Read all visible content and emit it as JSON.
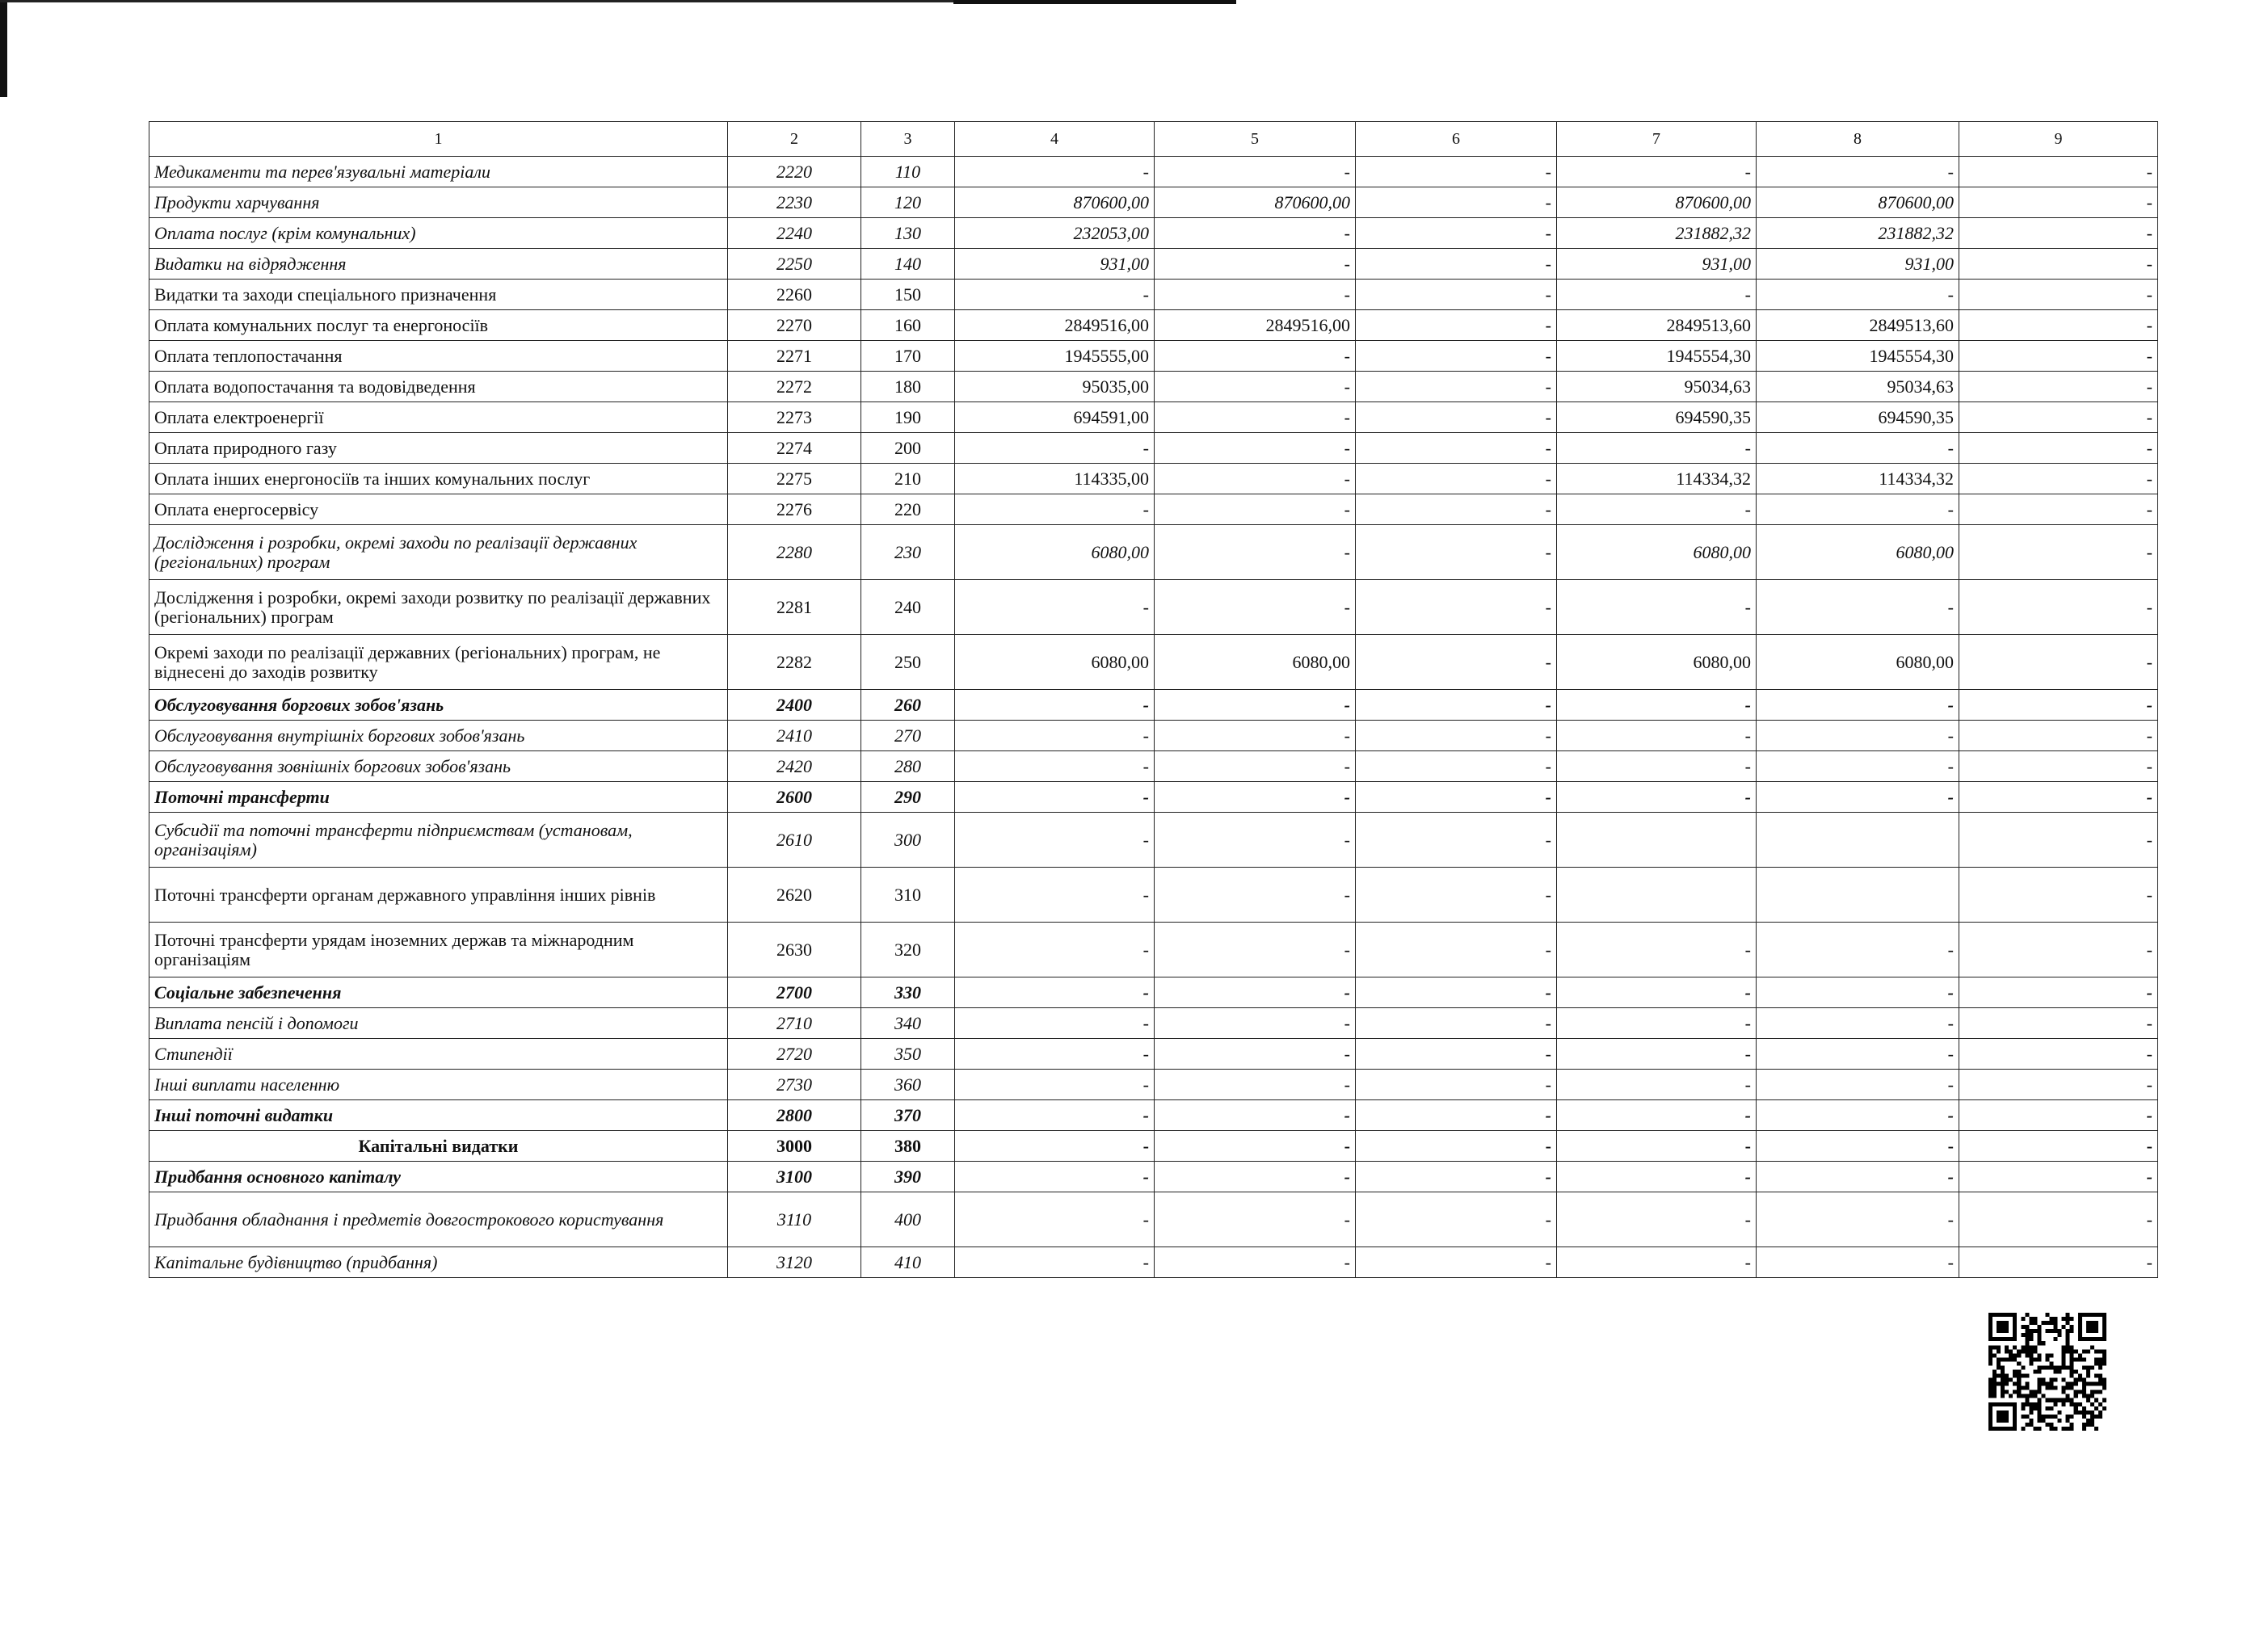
{
  "header": [
    "1",
    "2",
    "3",
    "4",
    "5",
    "6",
    "7",
    "8",
    "9"
  ],
  "rows": [
    {
      "label": "Медикаменти та перев'язувальні матеріали",
      "kekv": "2220",
      "code": "110",
      "values": [
        "-",
        "-",
        "-",
        "-",
        "-",
        "-"
      ],
      "style": "it"
    },
    {
      "label": "Продукти харчування",
      "kekv": "2230",
      "code": "120",
      "values": [
        "870600,00",
        "870600,00",
        "-",
        "870600,00",
        "870600,00",
        "-"
      ],
      "style": "it"
    },
    {
      "label": "Оплата послуг (крім комунальних)",
      "kekv": "2240",
      "code": "130",
      "values": [
        "232053,00",
        "-",
        "-",
        "231882,32",
        "231882,32",
        "-"
      ],
      "style": "it"
    },
    {
      "label": "Видатки на відрядження",
      "kekv": "2250",
      "code": "140",
      "values": [
        "931,00",
        "-",
        "-",
        "931,00",
        "931,00",
        "-"
      ],
      "style": "it"
    },
    {
      "label": "Видатки та заходи спеціального призначення",
      "kekv": "2260",
      "code": "150",
      "values": [
        "-",
        "-",
        "-",
        "-",
        "-",
        "-"
      ],
      "style": ""
    },
    {
      "label": "Оплата комунальних послуг та енергоносіїв",
      "kekv": "2270",
      "code": "160",
      "values": [
        "2849516,00",
        "2849516,00",
        "-",
        "2849513,60",
        "2849513,60",
        "-"
      ],
      "style": ""
    },
    {
      "label": "Оплата теплопостачання",
      "kekv": "2271",
      "code": "170",
      "values": [
        "1945555,00",
        "-",
        "-",
        "1945554,30",
        "1945554,30",
        "-"
      ],
      "style": ""
    },
    {
      "label": "Оплата водопостачання  та водовідведення",
      "kekv": "2272",
      "code": "180",
      "values": [
        "95035,00",
        "-",
        "-",
        "95034,63",
        "95034,63",
        "-"
      ],
      "style": ""
    },
    {
      "label": "Оплата електроенергії",
      "kekv": "2273",
      "code": "190",
      "values": [
        "694591,00",
        "-",
        "-",
        "694590,35",
        "694590,35",
        "-"
      ],
      "style": ""
    },
    {
      "label": "Оплата природного газу",
      "kekv": "2274",
      "code": "200",
      "values": [
        "-",
        "-",
        "-",
        "-",
        "-",
        "-"
      ],
      "style": ""
    },
    {
      "label": "Оплата інших енергоносіїв та інших комунальних послуг",
      "kekv": "2275",
      "code": "210",
      "values": [
        "114335,00",
        "-",
        "-",
        "114334,32",
        "114334,32",
        "-"
      ],
      "style": ""
    },
    {
      "label": "Оплата енергосервісу",
      "kekv": "2276",
      "code": "220",
      "values": [
        "-",
        "-",
        "-",
        "-",
        "-",
        "-"
      ],
      "style": ""
    },
    {
      "label": "Дослідження і розробки, окремі заходи по реалізації державних (регіональних) програм",
      "kekv": "2280",
      "code": "230",
      "values": [
        "6080,00",
        "-",
        "-",
        "6080,00",
        "6080,00",
        "-"
      ],
      "style": "it tall"
    },
    {
      "label": "Дослідження і розробки, окремі заходи розвитку по реалізації державних   (регіональних) програм",
      "kekv": "2281",
      "code": "240",
      "values": [
        "-",
        "-",
        "-",
        "-",
        "-",
        "-"
      ],
      "style": "tall"
    },
    {
      "label": "Окремі заходи по реалізації державних (регіональних) програм, не віднесені  до заходів розвитку",
      "kekv": "2282",
      "code": "250",
      "values": [
        "6080,00",
        "6080,00",
        "-",
        "6080,00",
        "6080,00",
        "-"
      ],
      "style": "tall"
    },
    {
      "label": "Обслуговування боргових зобов'язань",
      "kekv": "2400",
      "code": "260",
      "values": [
        "-",
        "-",
        "-",
        "-",
        "-",
        "-"
      ],
      "style": "it b"
    },
    {
      "label": "Обслуговування внутрішніх боргових зобов'язань",
      "kekv": "2410",
      "code": "270",
      "values": [
        "-",
        "-",
        "-",
        "-",
        "-",
        "-"
      ],
      "style": "it"
    },
    {
      "label": "Обслуговування зовнішніх боргових зобов'язань",
      "kekv": "2420",
      "code": "280",
      "values": [
        "-",
        "-",
        "-",
        "-",
        "-",
        "-"
      ],
      "style": "it"
    },
    {
      "label": "Поточні трансферти",
      "kekv": "2600",
      "code": "290",
      "values": [
        "-",
        "-",
        "-",
        "-",
        "-",
        "-"
      ],
      "style": "it b"
    },
    {
      "label": "Субсидії та поточні трансферти підприємствам (установам, організаціям)",
      "kekv": "2610",
      "code": "300",
      "values": [
        "-",
        "-",
        "-",
        "",
        "",
        "-"
      ],
      "style": "it tall"
    },
    {
      "label": "Поточні трансферти органам державного управління інших рівнів",
      "kekv": "2620",
      "code": "310",
      "values": [
        "-",
        "-",
        "-",
        "",
        "",
        "-"
      ],
      "style": "tall"
    },
    {
      "label": "Поточні трансферти  урядам іноземних держав та міжнародним організаціям",
      "kekv": "2630",
      "code": "320",
      "values": [
        "-",
        "-",
        "-",
        "-",
        "-",
        "-"
      ],
      "style": "tall"
    },
    {
      "label": "Соціальне забезпечення",
      "kekv": "2700",
      "code": "330",
      "values": [
        "-",
        "-",
        "-",
        "-",
        "-",
        "-"
      ],
      "style": "it b"
    },
    {
      "label": "Виплата пенсій і допомоги",
      "kekv": "2710",
      "code": "340",
      "values": [
        "-",
        "-",
        "-",
        "-",
        "-",
        "-"
      ],
      "style": "it"
    },
    {
      "label": "Стипендії",
      "kekv": "2720",
      "code": "350",
      "values": [
        "-",
        "-",
        "-",
        "-",
        "-",
        "-"
      ],
      "style": "it"
    },
    {
      "label": "Інші виплати населенню",
      "kekv": "2730",
      "code": "360",
      "values": [
        "-",
        "-",
        "-",
        "-",
        "-",
        "-"
      ],
      "style": "it"
    },
    {
      "label": "Інші поточні видатки",
      "kekv": "2800",
      "code": "370",
      "values": [
        "-",
        "-",
        "-",
        "-",
        "-",
        "-"
      ],
      "style": "it b"
    },
    {
      "label": "Капітальні видатки",
      "kekv": "3000",
      "code": "380",
      "values": [
        "-",
        "-",
        "-",
        "-",
        "-",
        "-"
      ],
      "style": "b c"
    },
    {
      "label": "Придбання основного капіталу",
      "kekv": "3100",
      "code": "390",
      "values": [
        "-",
        "-",
        "-",
        "-",
        "-",
        "-"
      ],
      "style": "it b"
    },
    {
      "label": "Придбання обладнання і предметів довгострокового користування",
      "kekv": "3110",
      "code": "400",
      "values": [
        "-",
        "-",
        "-",
        "-",
        "-",
        "-"
      ],
      "style": "it tall"
    },
    {
      "label": "Капітальне будівництво (придбання)",
      "kekv": "3120",
      "code": "410",
      "values": [
        "-",
        "-",
        "-",
        "-",
        "-",
        "-"
      ],
      "style": "it"
    }
  ],
  "qr_code": "qr-code-icon"
}
